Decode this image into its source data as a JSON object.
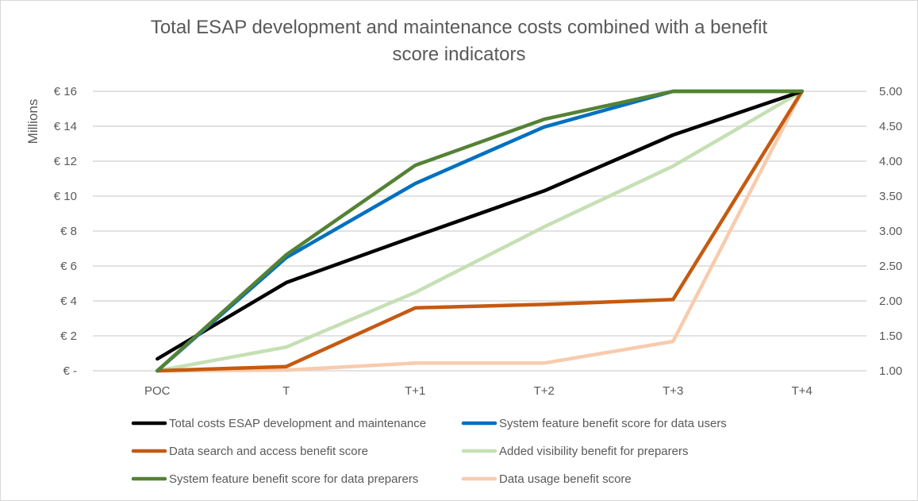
{
  "chart_data": {
    "type": "line",
    "title": "Total ESAP development and maintenance costs combined with a benefit score indicators",
    "title_lines": [
      "Total ESAP development and maintenance costs combined with a benefit",
      "score indicators"
    ],
    "xlabel": "",
    "ylabel": "Millions",
    "y2label": "",
    "categories": [
      "POC",
      "T",
      "T+1",
      "T+2",
      "T+3",
      "T+4"
    ],
    "ylim": [
      0,
      16
    ],
    "y2lim": [
      1.0,
      5.0
    ],
    "yticks": [
      "€ -",
      "€ 2",
      "€ 4",
      "€ 6",
      "€ 8",
      "€ 10",
      "€ 12",
      "€ 14",
      "€ 16"
    ],
    "y2ticks": [
      "1.00",
      "1.50",
      "2.00",
      "2.50",
      "3.00",
      "3.50",
      "4.00",
      "4.50",
      "5.00"
    ],
    "grid": true,
    "legend_position": "bottom",
    "series": [
      {
        "name": "Total costs ESAP development and maintenance",
        "axis": "left",
        "color": "#000000",
        "values": [
          0.68,
          5.05,
          7.7,
          10.3,
          13.5,
          16.0
        ]
      },
      {
        "name": "System feature benefit score for data users",
        "axis": "right",
        "color": "#0070C0",
        "values": [
          1.0,
          2.62,
          3.68,
          4.49,
          5.0,
          5.0
        ]
      },
      {
        "name": "Data search and access benefit score",
        "axis": "right",
        "color": "#C55A11",
        "values": [
          1.0,
          1.06,
          1.9,
          1.95,
          2.02,
          5.0
        ]
      },
      {
        "name": "Added visibility benefit for preparers",
        "axis": "right",
        "color": "#C5E0B4",
        "values": [
          1.0,
          1.34,
          2.12,
          3.06,
          3.93,
          5.0
        ]
      },
      {
        "name": "System feature benefit score for data preparers",
        "axis": "right",
        "color": "#548235",
        "values": [
          1.0,
          2.66,
          3.94,
          4.6,
          5.0,
          5.0
        ]
      },
      {
        "name": "Data usage benefit score",
        "axis": "right",
        "color": "#F8CBAD",
        "values": [
          1.0,
          1.01,
          1.11,
          1.11,
          1.42,
          5.0
        ]
      }
    ],
    "legend_order": [
      0,
      1,
      2,
      3,
      4,
      5
    ]
  }
}
